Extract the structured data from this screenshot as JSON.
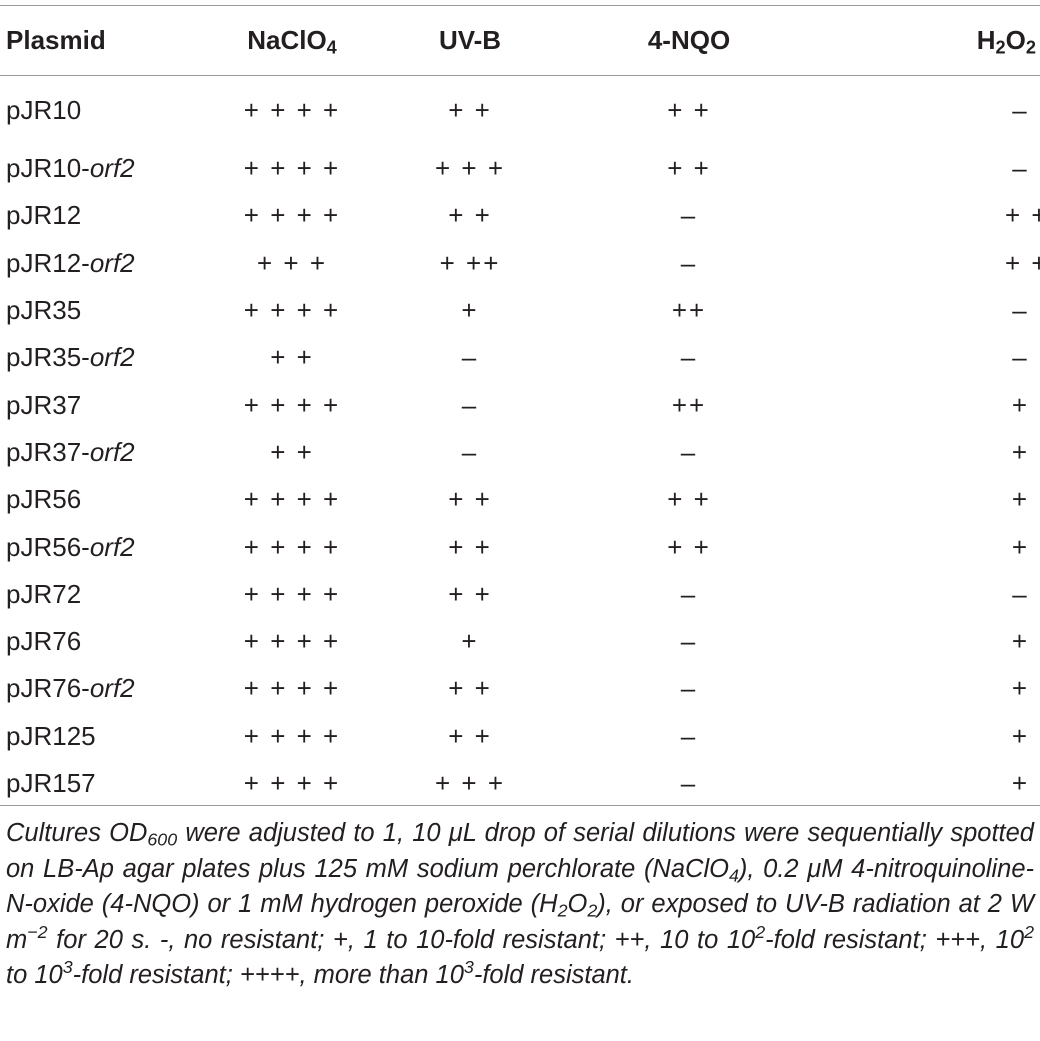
{
  "table": {
    "headers": {
      "plasmid": "Plasmid",
      "naclo4_base": "NaClO",
      "naclo4_sub": "4",
      "uvb": "UV-B",
      "nqo": "4-NQO",
      "h2o2_h": "H",
      "h2o2_sub1": "2",
      "h2o2_o": "O",
      "h2o2_sub2": "2"
    },
    "rows": [
      {
        "name": "pJR10",
        "suffix": "",
        "naclo4": "+ + + +",
        "uvb": "+ +",
        "nqo": "+ +",
        "h2o2": "–"
      },
      {
        "name": "pJR10-",
        "suffix": "orf2",
        "naclo4": "+ + + +",
        "uvb": "+ + +",
        "nqo": "+ +",
        "h2o2": "–"
      },
      {
        "name": "pJR12",
        "suffix": "",
        "naclo4": "+ + + +",
        "uvb": "+ +",
        "nqo": "–",
        "h2o2": "+ +"
      },
      {
        "name": "pJR12-",
        "suffix": "orf2",
        "naclo4": "+ + +",
        "uvb": "+ ++",
        "nqo": "–",
        "h2o2": "+ +"
      },
      {
        "name": "pJR35",
        "suffix": "",
        "naclo4": "+ + + +",
        "uvb": "+",
        "nqo": "++",
        "h2o2": "–"
      },
      {
        "name": "pJR35-",
        "suffix": "orf2",
        "naclo4": "+ +",
        "uvb": "–",
        "nqo": "–",
        "h2o2": "–"
      },
      {
        "name": "pJR37",
        "suffix": "",
        "naclo4": "+ + + +",
        "uvb": "–",
        "nqo": "++",
        "h2o2": "+"
      },
      {
        "name": "pJR37-",
        "suffix": "orf2",
        "naclo4": "+ +",
        "uvb": "–",
        "nqo": "–",
        "h2o2": "+"
      },
      {
        "name": "pJR56",
        "suffix": "",
        "naclo4": "+ + + +",
        "uvb": "+ +",
        "nqo": "+ +",
        "h2o2": "+"
      },
      {
        "name": "pJR56-",
        "suffix": "orf2",
        "naclo4": "+ + + +",
        "uvb": "+ +",
        "nqo": "+ +",
        "h2o2": "+"
      },
      {
        "name": "pJR72",
        "suffix": "",
        "naclo4": "+ + + +",
        "uvb": "+ +",
        "nqo": "–",
        "h2o2": "–"
      },
      {
        "name": "pJR76",
        "suffix": "",
        "naclo4": "+ + + +",
        "uvb": "+",
        "nqo": "–",
        "h2o2": "+"
      },
      {
        "name": "pJR76-",
        "suffix": "orf2",
        "naclo4": "+ + + +",
        "uvb": "+ +",
        "nqo": "–",
        "h2o2": "+"
      },
      {
        "name": "pJR125",
        "suffix": "",
        "naclo4": "+ + + +",
        "uvb": "+ +",
        "nqo": "–",
        "h2o2": "+"
      },
      {
        "name": "pJR157",
        "suffix": "",
        "naclo4": "+ + + +",
        "uvb": "+ + +",
        "nqo": "–",
        "h2o2": "+"
      }
    ]
  },
  "footnote": {
    "p1": "Cultures OD",
    "p1_sub": "600",
    "p2": " were adjusted to 1, 10 μL drop of serial dilutions were sequentially spotted on LB-Ap agar plates plus 125 mM sodium perchlorate (NaClO",
    "p2_sub": "4",
    "p3": "), 0.2 μM 4-nitroquinoline-N-oxide (4-NQO) or 1 mM hydrogen peroxide (H",
    "p3_sub1": "2",
    "p3_mid": "O",
    "p3_sub2": "2",
    "p4": "), or exposed to UV-B radiation at 2 W m",
    "p4_sup": "−2",
    "p5": " for 20 s. -, no resistant; +, 1 to 10-fold resistant; ++, 10 to 10",
    "p5_sup": "2",
    "p6": "-fold resistant; +++, 10",
    "p6_sup": "2",
    "p7": " to 10",
    "p7_sup": "3",
    "p8": "-fold resistant; ++++, more than 10",
    "p8_sup": "3",
    "p9": "-fold resistant."
  }
}
